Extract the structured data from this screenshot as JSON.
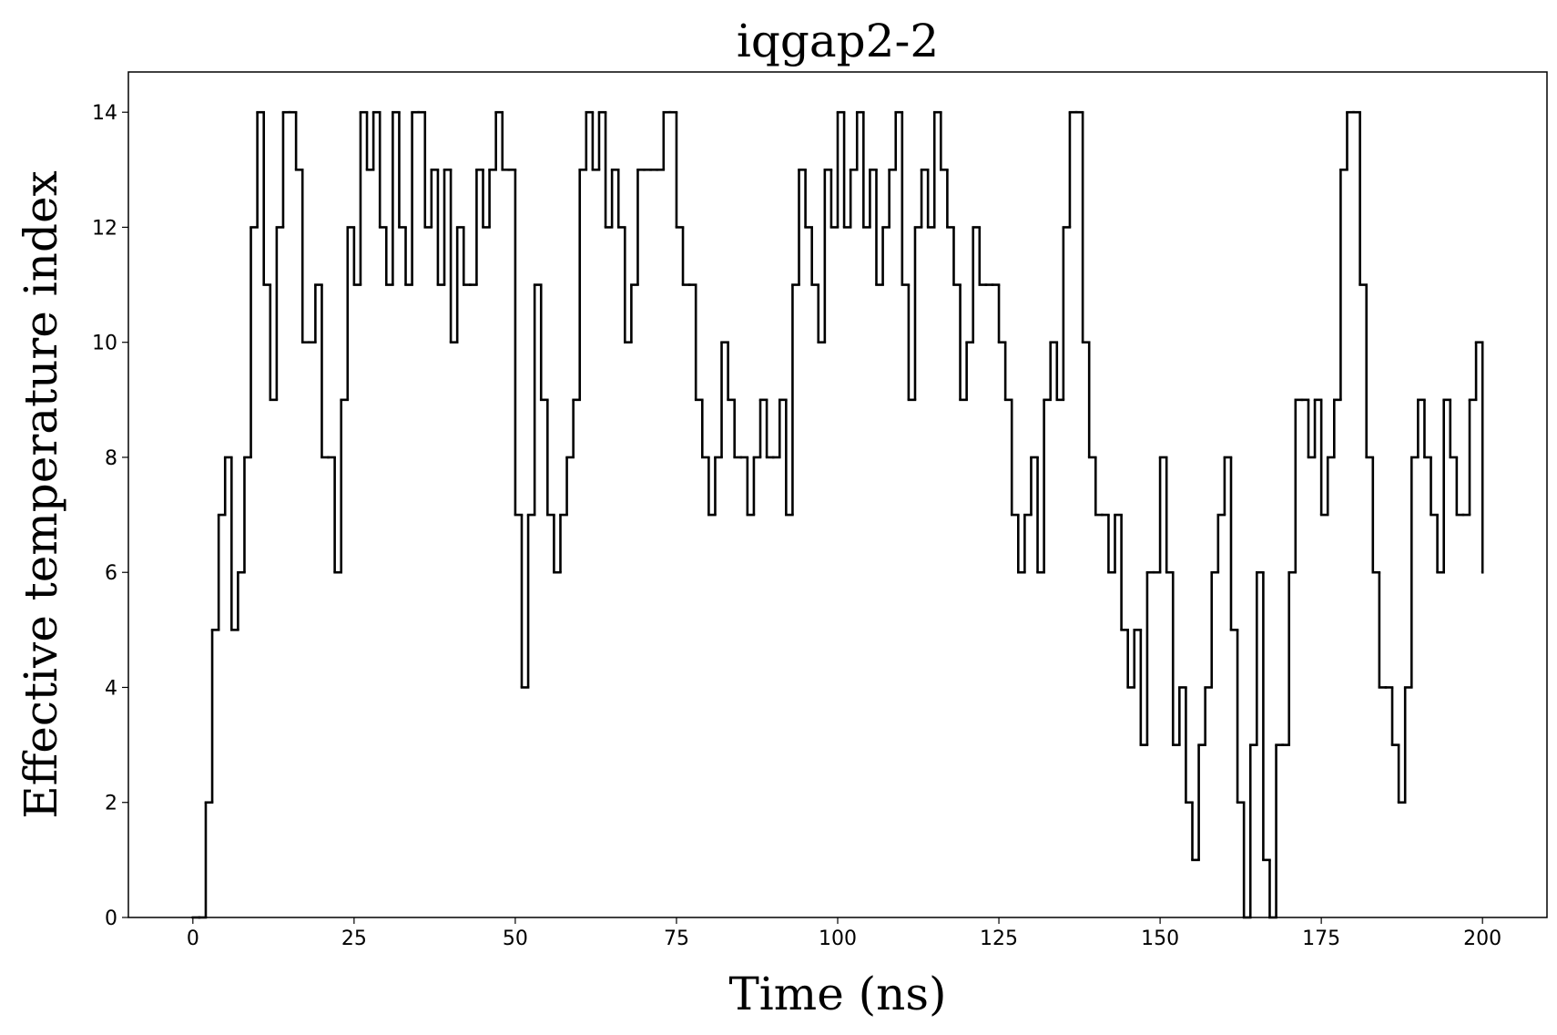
{
  "chart_data": {
    "type": "step",
    "title": "iqgap2-2",
    "x_label": "Time (ns)",
    "y_label": "Effective temperature index",
    "x": [
      0,
      1,
      2,
      3,
      4,
      5,
      6,
      7,
      8,
      9,
      10,
      11,
      12,
      13,
      14,
      15,
      16,
      17,
      18,
      19,
      20,
      21,
      22,
      23,
      24,
      25,
      26,
      27,
      28,
      29,
      30,
      31,
      32,
      33,
      34,
      35,
      36,
      37,
      38,
      39,
      40,
      41,
      42,
      43,
      44,
      45,
      46,
      47,
      48,
      49,
      50,
      51,
      52,
      53,
      54,
      55,
      56,
      57,
      58,
      59,
      60,
      61,
      62,
      63,
      64,
      65,
      66,
      67,
      68,
      69,
      70,
      71,
      72,
      73,
      74,
      75,
      76,
      77,
      78,
      79,
      80,
      81,
      82,
      83,
      84,
      85,
      86,
      87,
      88,
      89,
      90,
      91,
      92,
      93,
      94,
      95,
      96,
      97,
      98,
      99,
      100,
      101,
      102,
      103,
      104,
      105,
      106,
      107,
      108,
      109,
      110,
      111,
      112,
      113,
      114,
      115,
      116,
      117,
      118,
      119,
      120,
      121,
      122,
      123,
      124,
      125,
      126,
      127,
      128,
      129,
      130,
      131,
      132,
      133,
      134,
      135,
      136,
      137,
      138,
      139,
      140,
      141,
      142,
      143,
      144,
      145,
      146,
      147,
      148,
      149,
      150,
      151,
      152,
      153,
      154,
      155,
      156,
      157,
      158,
      159,
      160,
      161,
      162,
      163,
      164,
      165,
      166,
      167,
      168,
      169,
      170,
      171,
      172,
      173,
      174,
      175,
      176,
      177,
      178,
      179,
      180,
      181,
      182,
      183,
      184,
      185,
      186,
      187,
      188,
      189,
      190,
      191,
      192,
      193,
      194,
      195,
      196,
      197,
      198,
      199,
      200
    ],
    "series": [
      {
        "color": "#000000",
        "values": [
          0,
          0,
          2,
          5,
          7,
          8,
          5,
          6,
          8,
          12,
          14,
          11,
          9,
          12,
          14,
          14,
          13,
          10,
          10,
          11,
          8,
          8,
          6,
          9,
          12,
          11,
          14,
          13,
          14,
          12,
          11,
          14,
          12,
          11,
          14,
          14,
          12,
          13,
          11,
          13,
          10,
          12,
          11,
          11,
          13,
          12,
          13,
          14,
          13,
          13,
          7,
          4,
          7,
          11,
          9,
          7,
          6,
          7,
          8,
          9,
          13,
          14,
          13,
          14,
          12,
          13,
          12,
          10,
          11,
          13,
          13,
          13,
          13,
          14,
          14,
          12,
          11,
          11,
          9,
          8,
          7,
          8,
          10,
          9,
          8,
          8,
          7,
          8,
          9,
          8,
          8,
          9,
          7,
          11,
          13,
          12,
          11,
          10,
          13,
          12,
          14,
          12,
          13,
          14,
          12,
          13,
          11,
          12,
          13,
          14,
          11,
          9,
          12,
          13,
          12,
          14,
          13,
          12,
          11,
          9,
          10,
          12,
          11,
          11,
          11,
          10,
          9,
          7,
          6,
          7,
          8,
          6,
          9,
          10,
          9,
          12,
          14,
          14,
          10,
          8,
          7,
          7,
          6,
          7,
          5,
          4,
          5,
          3,
          6,
          6,
          8,
          6,
          3,
          4,
          2,
          1,
          3,
          4,
          6,
          7,
          8,
          5,
          2,
          0,
          3,
          6,
          1,
          0,
          3,
          3,
          6,
          9,
          9,
          8,
          9,
          7,
          8,
          9,
          13,
          14,
          14,
          11,
          8,
          6,
          4,
          4,
          3,
          2,
          4,
          8,
          9,
          8,
          7,
          6,
          9,
          8,
          7,
          7,
          9,
          10,
          6
        ]
      }
    ],
    "xlim": [
      -10,
      210
    ],
    "ylim": [
      0,
      14.7
    ],
    "xticks": [
      0,
      25,
      50,
      75,
      100,
      125,
      150,
      175,
      200
    ],
    "yticks": [
      0,
      2,
      4,
      6,
      8,
      10,
      12,
      14
    ]
  }
}
